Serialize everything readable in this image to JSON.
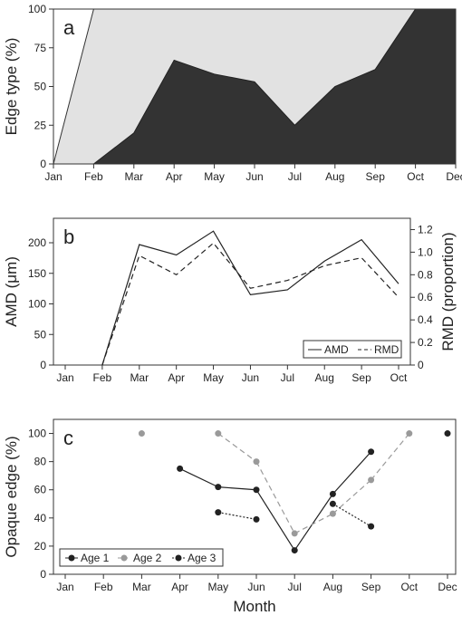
{
  "chart_data": [
    {
      "panel": "a",
      "type": "area",
      "stacked_percent": true,
      "categories": [
        "Jan",
        "Feb",
        "Mar",
        "Apr",
        "May",
        "Jun",
        "Jul",
        "Aug",
        "Sep",
        "Oct",
        "Dec"
      ],
      "series": [
        {
          "values": [
            0,
            0,
            20,
            67,
            58,
            53,
            25,
            50,
            61,
            100,
            100
          ],
          "color": "#333333"
        },
        {
          "values": [
            0,
            100,
            80,
            33,
            42,
            47,
            75,
            50,
            39,
            0,
            0
          ],
          "color": "#e2e2e2"
        }
      ],
      "ylabel": "Edge type (%)",
      "ylim": [
        0,
        100
      ],
      "yticks": [
        0,
        25,
        50,
        75,
        100
      ],
      "grid": false
    },
    {
      "panel": "b",
      "type": "line",
      "categories": [
        "Jan",
        "Feb",
        "Mar",
        "Apr",
        "May",
        "Jun",
        "Jul",
        "Aug",
        "Sep",
        "Oct"
      ],
      "series": [
        {
          "name": "AMD",
          "axis": "left",
          "style": "solid",
          "values": [
            null,
            0,
            197,
            180,
            219,
            115,
            123,
            170,
            205,
            133
          ]
        },
        {
          "name": "RMD",
          "axis": "right",
          "style": "dashed",
          "values": [
            null,
            0,
            0.97,
            0.8,
            1.08,
            0.68,
            0.75,
            0.88,
            0.95,
            0.6
          ]
        }
      ],
      "ylabel": "AMD (μm)",
      "ylim": [
        0,
        240
      ],
      "yticks": [
        0,
        50,
        100,
        150,
        200
      ],
      "y2label": "RMD (proportion)",
      "y2lim": [
        0,
        1.3
      ],
      "y2ticks": [
        "0",
        "0.2",
        "0.4",
        "0.6",
        "0.8",
        "1.0",
        "1.2"
      ],
      "legend_position": "bottom-right",
      "grid": false
    },
    {
      "panel": "c",
      "type": "line",
      "categories": [
        "Jan",
        "Feb",
        "Mar",
        "Apr",
        "May",
        "Jun",
        "Jul",
        "Aug",
        "Sep",
        "Oct",
        "Dec"
      ],
      "series": [
        {
          "name": "Age 1",
          "style": "solid",
          "color": "#222222",
          "values": [
            null,
            null,
            null,
            75,
            62,
            60,
            17,
            57,
            87,
            null,
            100
          ]
        },
        {
          "name": "Age 2",
          "style": "dashed",
          "color": "#9a9a9a",
          "values": [
            null,
            null,
            100,
            null,
            100,
            80,
            29,
            43,
            67,
            100,
            null
          ]
        },
        {
          "name": "Age 3",
          "style": "dotted",
          "color": "#222222",
          "values": [
            null,
            null,
            null,
            null,
            44,
            39,
            null,
            50,
            34,
            null,
            null
          ]
        }
      ],
      "xlabel": "Month",
      "ylabel": "Opaque edge (%)",
      "ylim": [
        0,
        110
      ],
      "yticks": [
        0,
        20,
        40,
        60,
        80,
        100
      ],
      "legend_position": "bottom-left",
      "grid": false
    }
  ]
}
